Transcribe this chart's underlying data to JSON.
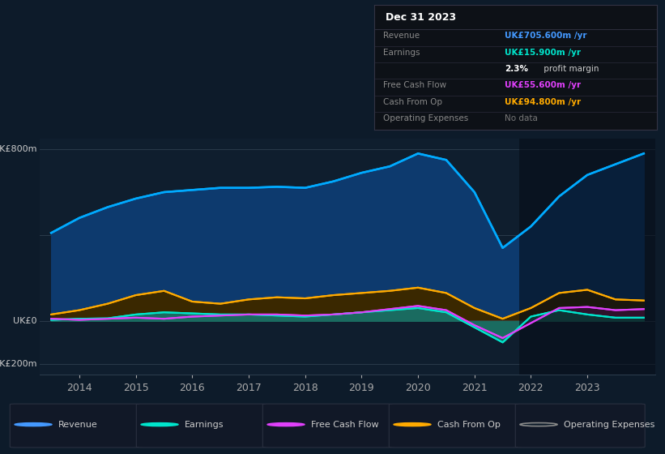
{
  "background_color": "#0d1b2a",
  "plot_bg_color": "#0f1e2e",
  "ylabel_800": "UK£800m",
  "ylabel_0": "UK£0",
  "ylabel_neg200": "-UK£200m",
  "ylim": [
    -250,
    850
  ],
  "xlim": [
    2013.3,
    2024.2
  ],
  "xticks": [
    2014,
    2015,
    2016,
    2017,
    2018,
    2019,
    2020,
    2021,
    2022,
    2023
  ],
  "years": [
    2013.5,
    2014,
    2014.5,
    2015,
    2015.5,
    2016,
    2016.5,
    2017,
    2017.5,
    2018,
    2018.5,
    2019,
    2019.5,
    2020,
    2020.5,
    2021,
    2021.5,
    2022,
    2022.5,
    2023,
    2023.5,
    2024
  ],
  "revenue": [
    410,
    480,
    530,
    570,
    600,
    610,
    620,
    620,
    625,
    620,
    650,
    690,
    720,
    780,
    750,
    600,
    340,
    440,
    580,
    680,
    730,
    780
  ],
  "earnings": [
    5,
    10,
    12,
    30,
    40,
    35,
    30,
    30,
    25,
    20,
    30,
    40,
    50,
    60,
    40,
    -30,
    -100,
    20,
    50,
    30,
    15,
    15
  ],
  "free_cash_flow": [
    10,
    5,
    10,
    15,
    10,
    20,
    25,
    30,
    30,
    25,
    30,
    40,
    55,
    70,
    50,
    -20,
    -80,
    -10,
    60,
    65,
    50,
    55
  ],
  "cash_from_op": [
    30,
    50,
    80,
    120,
    140,
    90,
    80,
    100,
    110,
    105,
    120,
    130,
    140,
    155,
    130,
    60,
    10,
    60,
    130,
    145,
    100,
    95
  ],
  "revenue_color": "#00aaff",
  "revenue_fill": "#0d3a6e",
  "earnings_color": "#00e5cc",
  "earnings_fill": "#1a6b60",
  "free_cash_flow_color": "#e040fb",
  "free_cash_flow_fill": "#6b1a4a",
  "cash_from_op_color": "#ffaa00",
  "cash_from_op_fill": "#3a2800",
  "info_box_title": "Dec 31 2023",
  "info_rows": [
    {
      "label": "Revenue",
      "value": "UK£705.600m /yr",
      "value_color": "#4499ff",
      "bold": true
    },
    {
      "label": "Earnings",
      "value": "UK£15.900m /yr",
      "value_color": "#00e5cc",
      "bold": true
    },
    {
      "label": "",
      "value": "2.3%",
      "value_color": "#ffffff",
      "bold": true,
      "suffix": " profit margin",
      "suffix_color": "#cccccc"
    },
    {
      "label": "Free Cash Flow",
      "value": "UK£55.600m /yr",
      "value_color": "#e040fb",
      "bold": true
    },
    {
      "label": "Cash From Op",
      "value": "UK£94.800m /yr",
      "value_color": "#ffaa00",
      "bold": true
    },
    {
      "label": "Operating Expenses",
      "value": "No data",
      "value_color": "#777777",
      "bold": false
    }
  ],
  "legend": [
    {
      "label": "Revenue",
      "color": "#4499ff"
    },
    {
      "label": "Earnings",
      "color": "#00e5cc"
    },
    {
      "label": "Free Cash Flow",
      "color": "#e040fb"
    },
    {
      "label": "Cash From Op",
      "color": "#ffaa00"
    },
    {
      "label": "Operating Expenses",
      "color": "#888888",
      "hollow": true
    }
  ]
}
